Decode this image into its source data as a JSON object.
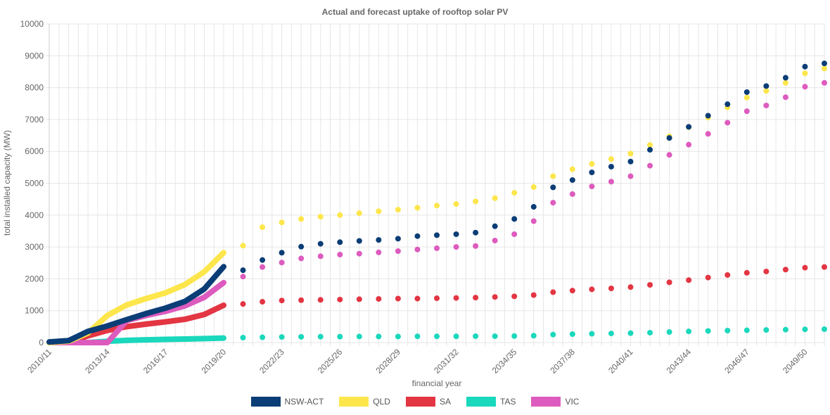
{
  "chart_data": {
    "type": "scatter",
    "title": "Actual and forecast uptake of rooftop solar PV",
    "xlabel": "financial year",
    "ylabel": "total installed capacity (MW)",
    "ylim": [
      0,
      10000
    ],
    "yticks": [
      "0",
      "1000",
      "2000",
      "3000",
      "4000",
      "5000",
      "6000",
      "7000",
      "8000",
      "9000",
      "10000"
    ],
    "x_categories": [
      "2010/11",
      "2011/12",
      "2012/13",
      "2013/14",
      "2014/15",
      "2015/16",
      "2016/17",
      "2017/18",
      "2018/19",
      "2019/20",
      "2020/21",
      "2021/22",
      "2022/23",
      "2023/24",
      "2024/25",
      "2025/26",
      "2026/27",
      "2027/28",
      "2028/29",
      "2029/30",
      "2030/31",
      "2031/32",
      "2032/33",
      "2033/34",
      "2034/35",
      "2035/36",
      "2036/37",
      "2037/38",
      "2038/39",
      "2039/40",
      "2040/41",
      "2041/42",
      "2042/43",
      "2043/44",
      "2044/45",
      "2045/46",
      "2046/47",
      "2047/48",
      "2048/49",
      "2049/50",
      "2050/51"
    ],
    "x_tick_labels": [
      "2010/11",
      "2013/14",
      "2016/17",
      "2019/20",
      "2022/23",
      "2025/26",
      "2028/29",
      "2031/32",
      "2034/35",
      "2037/38",
      "2040/41",
      "2043/44",
      "2046/47",
      "2049/50"
    ],
    "legend_position": "bottom",
    "grid": true,
    "actual_x": [
      "2010/11",
      "2011/12",
      "2012/13",
      "2013/14",
      "2014/15",
      "2015/16",
      "2016/17",
      "2017/18",
      "2018/19",
      "2019/20"
    ],
    "forecast_x": [
      "2020/21",
      "2021/22",
      "2022/23",
      "2023/24",
      "2024/25",
      "2025/26",
      "2026/27",
      "2027/28",
      "2028/29",
      "2029/30",
      "2030/31",
      "2031/32",
      "2032/33",
      "2033/34",
      "2034/35",
      "2035/36",
      "2036/37",
      "2037/38",
      "2038/39",
      "2039/40",
      "2040/41",
      "2041/42",
      "2042/43",
      "2043/44",
      "2044/45",
      "2045/46",
      "2046/47",
      "2047/48",
      "2048/49",
      "2049/50",
      "2050/51"
    ],
    "series": [
      {
        "name": "NSW-ACT",
        "color": "#0b3d76",
        "actual": [
          20,
          60,
          350,
          520,
          720,
          910,
          1080,
          1290,
          1680,
          2380
        ],
        "forecast": [
          2270,
          2590,
          2820,
          3010,
          3100,
          3150,
          3190,
          3220,
          3260,
          3340,
          3370,
          3400,
          3450,
          3650,
          3880,
          4260,
          4870,
          5100,
          5340,
          5520,
          5680,
          6050,
          6420,
          6770,
          7120,
          7480,
          7860,
          8050,
          8310,
          8660,
          8760
        ]
      },
      {
        "name": "QLD",
        "color": "#fde64b",
        "actual": [
          0,
          40,
          300,
          850,
          1180,
          1380,
          1560,
          1820,
          2220,
          2820
        ],
        "forecast": [
          3040,
          3620,
          3770,
          3880,
          3950,
          4000,
          4060,
          4120,
          4170,
          4230,
          4300,
          4350,
          4430,
          4530,
          4700,
          4880,
          5220,
          5440,
          5610,
          5760,
          5930,
          6200,
          6470,
          6760,
          7060,
          7380,
          7690,
          7900,
          8150,
          8450,
          8600
        ]
      },
      {
        "name": "SA",
        "color": "#e33542",
        "actual": [
          0,
          0,
          210,
          380,
          500,
          580,
          650,
          730,
          880,
          1170
        ],
        "forecast": [
          1210,
          1280,
          1320,
          1330,
          1340,
          1350,
          1360,
          1370,
          1380,
          1380,
          1390,
          1400,
          1410,
          1430,
          1450,
          1490,
          1580,
          1630,
          1670,
          1700,
          1740,
          1810,
          1890,
          1960,
          2040,
          2120,
          2190,
          2230,
          2290,
          2350,
          2370
        ]
      },
      {
        "name": "TAS",
        "color": "#1ad8bc",
        "actual": [
          0,
          0,
          0,
          40,
          70,
          85,
          100,
          110,
          125,
          140
        ],
        "forecast": [
          155,
          165,
          175,
          180,
          185,
          185,
          190,
          190,
          190,
          195,
          195,
          195,
          200,
          200,
          205,
          215,
          250,
          265,
          275,
          285,
          295,
          310,
          330,
          350,
          365,
          375,
          385,
          395,
          405,
          415,
          420
        ]
      },
      {
        "name": "VIC",
        "color": "#dd5bbe",
        "actual": [
          0,
          0,
          0,
          0,
          690,
          850,
          980,
          1150,
          1420,
          1880
        ],
        "forecast": [
          2070,
          2370,
          2510,
          2640,
          2710,
          2760,
          2790,
          2830,
          2870,
          2920,
          2960,
          3000,
          3030,
          3200,
          3400,
          3810,
          4390,
          4660,
          4900,
          5050,
          5220,
          5550,
          5890,
          6210,
          6550,
          6900,
          7260,
          7440,
          7700,
          8030,
          8150
        ]
      }
    ]
  }
}
